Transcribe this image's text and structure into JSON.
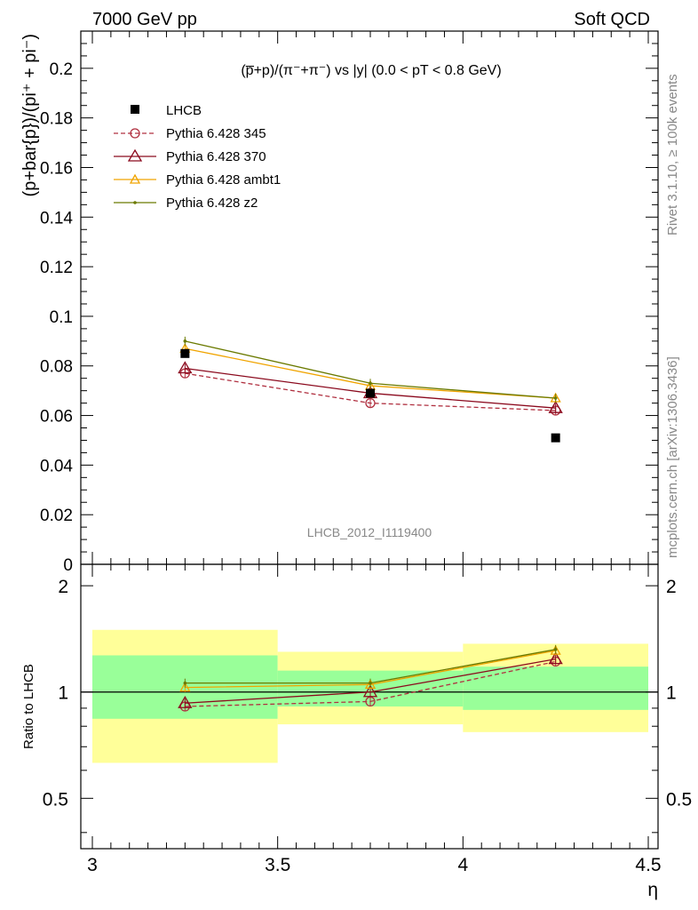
{
  "header": {
    "left": "7000 GeV pp",
    "right": "Soft QCD"
  },
  "side": {
    "rivet": "Rivet 3.1.10, ≥ 100k events",
    "mcplots": "mcplots.cern.ch [arXiv:1306.3436]"
  },
  "colors": {
    "data": "#000000",
    "p345": "#b03040",
    "p370": "#8b0a1e",
    "ambt1": "#f0a400",
    "z2": "#6b7a00",
    "band_inner": "#99ff99",
    "band_outer": "#ffff99"
  },
  "chart_data": [
    {
      "type": "scatter",
      "title": "(p̅+p)/(π⁻+π⁻) vs |y| (0.0 < pT < 0.8 GeV)",
      "ylabel": "(p+bar{p})/(pi⁺ + pi⁻)",
      "watermark": "LHCB_2012_I1119400",
      "xlim": [
        3.0,
        4.5
      ],
      "ylim": [
        0,
        0.215
      ],
      "y_ticks": [
        "0",
        "0.02",
        "0.04",
        "0.06",
        "0.08",
        "0.1",
        "0.12",
        "0.14",
        "0.16",
        "0.18",
        "0.2"
      ],
      "legend_placement": "top-left",
      "x": [
        3.25,
        3.75,
        4.25
      ],
      "series": [
        {
          "name": "LHCB",
          "values": [
            0.085,
            0.069,
            0.051
          ],
          "style": "marker-square"
        },
        {
          "name": "Pythia 6.428 345",
          "values": [
            0.077,
            0.065,
            0.062
          ],
          "style": "dashed-circle"
        },
        {
          "name": "Pythia 6.428 370",
          "values": [
            0.079,
            0.069,
            0.063
          ],
          "style": "solid-triangle"
        },
        {
          "name": "Pythia 6.428 ambt1",
          "values": [
            0.087,
            0.072,
            0.067
          ],
          "style": "solid-small-triangle"
        },
        {
          "name": "Pythia 6.428 z2",
          "values": [
            0.09,
            0.073,
            0.067
          ],
          "style": "solid-dot"
        }
      ]
    },
    {
      "type": "scatter",
      "ylabel": "Ratio to LHCB",
      "xlabel": "η",
      "xlim": [
        3.0,
        4.5
      ],
      "ylim": [
        0.36,
        2.3
      ],
      "y_scale": "log",
      "y_ticks": [
        "0.5",
        "1",
        "2"
      ],
      "x_ticks": [
        "3",
        "3.5",
        "4",
        "4.5"
      ],
      "x": [
        3.25,
        3.75,
        4.25
      ],
      "bins": [
        [
          3.0,
          3.5
        ],
        [
          3.5,
          4.0
        ],
        [
          4.0,
          4.5
        ]
      ],
      "band_inner": [
        [
          0.84,
          1.27
        ],
        [
          0.91,
          1.15
        ],
        [
          0.89,
          1.18
        ]
      ],
      "band_outer": [
        [
          0.63,
          1.5
        ],
        [
          0.81,
          1.3
        ],
        [
          0.77,
          1.37
        ]
      ],
      "series": [
        {
          "name": "Pythia 6.428 345",
          "values": [
            0.91,
            0.94,
            1.22
          ]
        },
        {
          "name": "Pythia 6.428 370",
          "values": [
            0.93,
            1.0,
            1.24
          ]
        },
        {
          "name": "Pythia 6.428 ambt1",
          "values": [
            1.03,
            1.05,
            1.31
          ]
        },
        {
          "name": "Pythia 6.428 z2",
          "values": [
            1.06,
            1.06,
            1.32
          ]
        }
      ]
    }
  ]
}
